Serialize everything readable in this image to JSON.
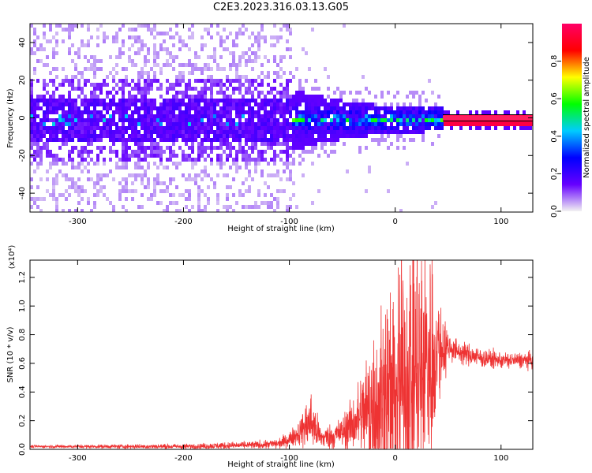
{
  "figure": {
    "title": "C2E3.2023.316.03.13.G05"
  },
  "chart_data": [
    {
      "type": "heatmap",
      "title": "",
      "xlabel": "Height of straight line (km)",
      "ylabel": "Frequency (Hz)",
      "xlim": [
        -345,
        130
      ],
      "ylim": [
        -50,
        50
      ],
      "xticks": [
        -300,
        -200,
        -100,
        0,
        100
      ],
      "yticks": [
        -40,
        -20,
        0,
        20,
        40
      ],
      "colorbar": {
        "label": "Normalized spectral amplitude",
        "range": [
          0.0,
          1.0
        ],
        "ticks": [
          0.0,
          0.2,
          0.4,
          0.6,
          0.8
        ],
        "colors": [
          "#f2f2f2",
          "#6600ff",
          "#0000ff",
          "#00ccff",
          "#00ff00",
          "#ffff00",
          "#ff0000",
          "#ff0066"
        ]
      },
      "description_points": {
        "noise_region": [
          -345,
          -100
        ],
        "signal_start": -100,
        "strong_line_start": 45,
        "strong_line_freq": 0
      }
    },
    {
      "type": "line",
      "title": "",
      "xlabel": "Height of straight line (km)",
      "ylabel": "SNR (10 * v/v)",
      "exponent_label": "(x10⁴)",
      "xlim": [
        -345,
        130
      ],
      "ylim": [
        0,
        1.32
      ],
      "xticks": [
        -300,
        -200,
        -100,
        0,
        100
      ],
      "yticks": [
        0.0,
        0.2,
        0.4,
        0.6,
        0.8,
        1.0,
        1.2
      ],
      "ytick_labels": [
        "0.0",
        "0.2",
        "0.4",
        "0.6",
        "0.8",
        "1.0",
        "1.2"
      ],
      "color": "#ee3333",
      "envelope_x": [
        -345,
        -200,
        -130,
        -110,
        -100,
        -90,
        -80,
        -70,
        -60,
        -50,
        -40,
        -30,
        -20,
        -10,
        0,
        10,
        20,
        30,
        40,
        50,
        60,
        80,
        100,
        130
      ],
      "envelope_mean": [
        0.02,
        0.02,
        0.03,
        0.04,
        0.07,
        0.12,
        0.2,
        0.08,
        0.09,
        0.12,
        0.18,
        0.25,
        0.3,
        0.32,
        0.38,
        0.48,
        0.55,
        0.6,
        0.7,
        0.72,
        0.68,
        0.64,
        0.62,
        0.62
      ],
      "envelope_amp": [
        0.005,
        0.01,
        0.015,
        0.02,
        0.03,
        0.05,
        0.12,
        0.04,
        0.05,
        0.06,
        0.1,
        0.18,
        0.3,
        0.42,
        0.45,
        0.5,
        0.6,
        0.5,
        0.25,
        0.06,
        0.04,
        0.04,
        0.03,
        0.03
      ]
    }
  ]
}
